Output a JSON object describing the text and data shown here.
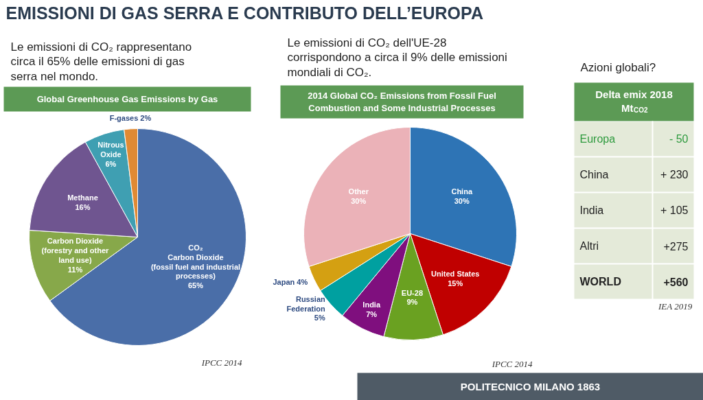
{
  "chart_data": [
    {
      "type": "pie",
      "title": "Global Greenhouse Gas Emissions by Gas",
      "subtitle": "Le emissioni di CO₂ rappresentano\ncirca il 65% delle emissioni di gas\nserra nel mondo.",
      "categories": [
        "CO₂\nCarbon Dioxide\n(fossil fuel and industrial\nprocesses)",
        "Carbon Dioxide\n(forestry and other\nland use)",
        "Methane",
        "Nitrous\nOxide",
        "F-gases"
      ],
      "values": [
        65,
        11,
        16,
        6,
        2
      ],
      "value_labels": [
        "65%",
        "11%",
        "16%",
        "6%",
        "2%"
      ],
      "colors": [
        "#4a6ea8",
        "#87a84a",
        "#6f5590",
        "#3f9fb2",
        "#e08a34"
      ],
      "annotations": [
        "EMISSIONI DI GAS SERRA E CONTRIBUTO DELL’EUROPA",
        "IPCC 2014"
      ]
    },
    {
      "type": "pie",
      "title": "2014 Global CO₂ Emissions from Fossil Fuel\nCombustion and Some Industrial Processes",
      "subtitle": "Le emissioni di CO₂ dell'UE-28\ncorrispondono a circa il 9% delle emissioni\nmondiali di CO₂.",
      "categories": [
        "China",
        "United States",
        "EU-28",
        "India",
        "Russian\nFederation",
        "Japan",
        "Other"
      ],
      "values": [
        30,
        15,
        9,
        7,
        5,
        4,
        30
      ],
      "value_labels": [
        "30%",
        "15%",
        "9%",
        "7%",
        "5%",
        "4%",
        "30%"
      ],
      "colors": [
        "#2e74b5",
        "#c00000",
        "#6aa121",
        "#7f0f7e",
        "#00a0a0",
        "#d4a012",
        "#ebb2b8"
      ],
      "annotations": [
        "IPCC 2014"
      ]
    },
    {
      "type": "other",
      "title": "Azioni globali?",
      "subtitle": "Delta emix 2018\nMt$_{CO2}$",
      "categories": [
        "Europa",
        "China",
        "India",
        "Altri",
        "WORLD"
      ],
      "value_labels": [
        "- 50",
        "+ 230",
        "+ 105",
        "+275",
        "+560"
      ],
      "annotations": [
        "IEA 2019",
        "POLITECNICO MILANO 1863"
      ]
    }
  ]
}
